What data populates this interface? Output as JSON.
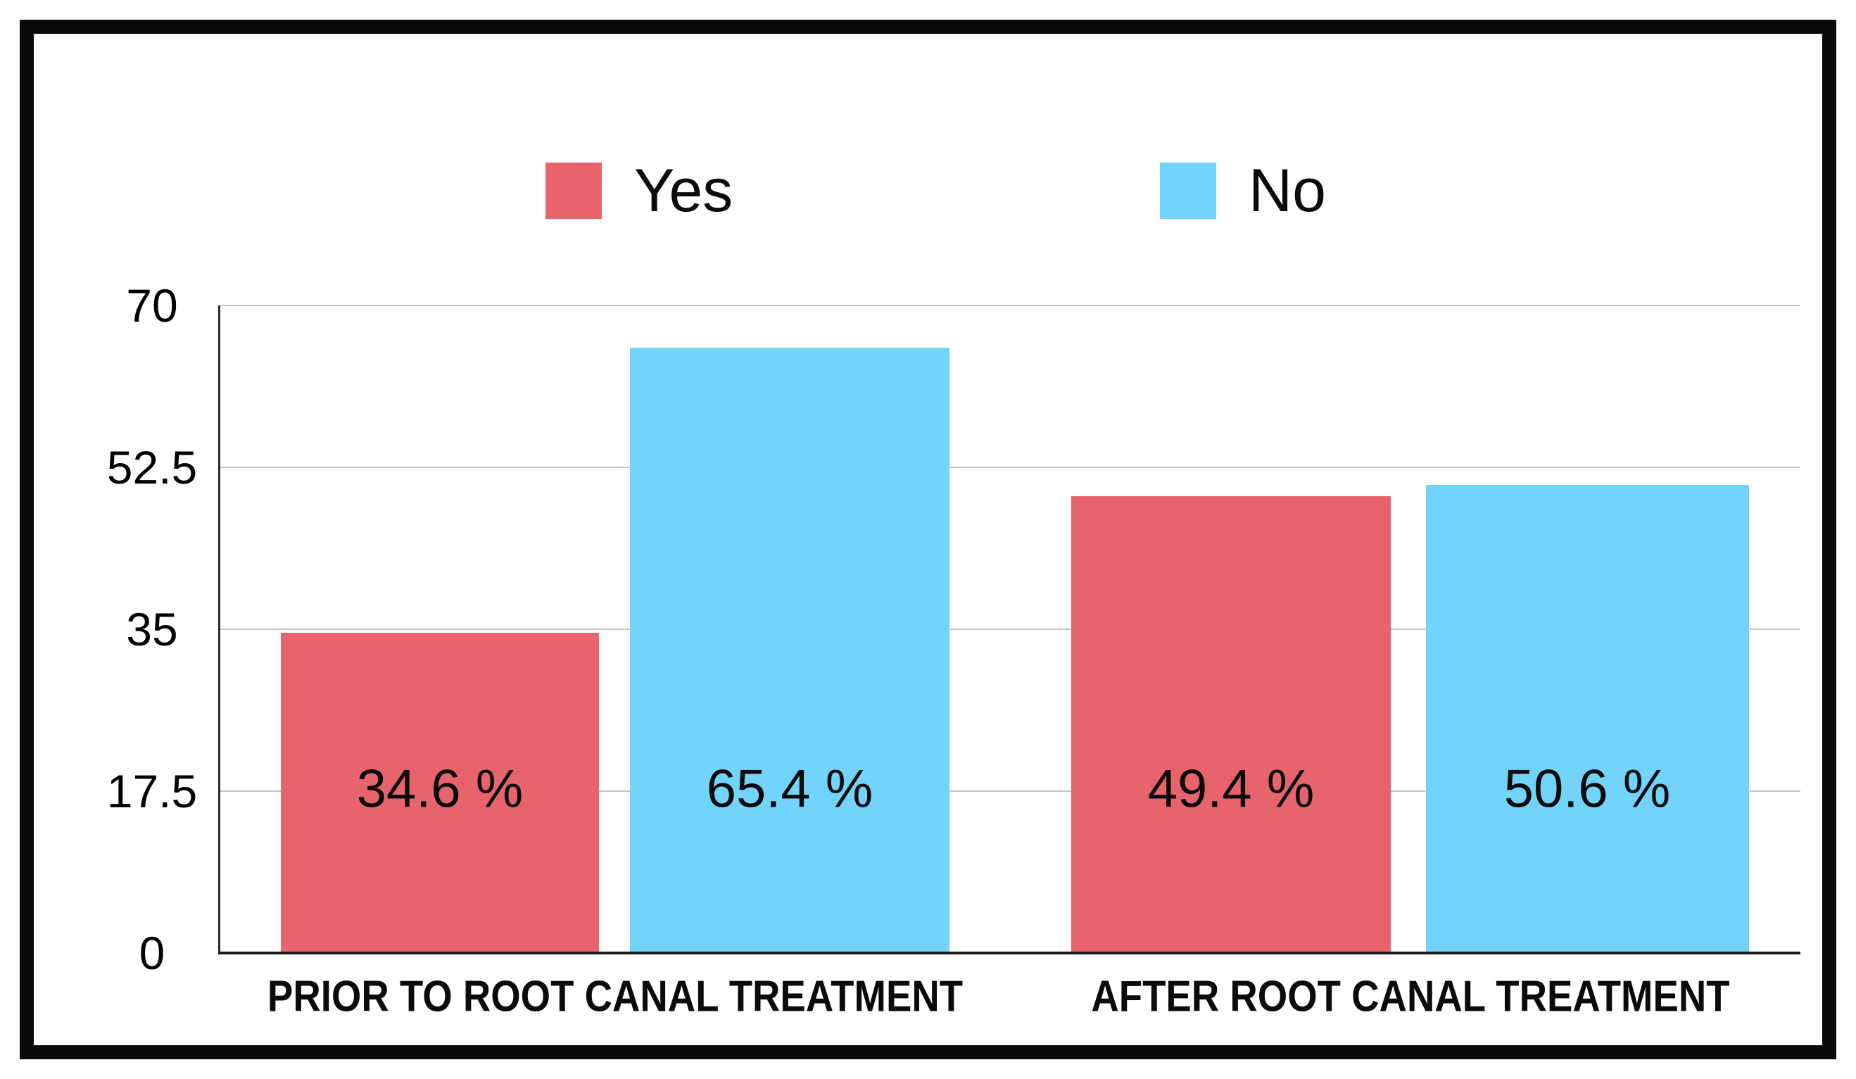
{
  "chart_data": {
    "type": "bar",
    "title": "",
    "categories": [
      "PRIOR TO ROOT CANAL TREATMENT",
      "AFTER ROOT CANAL TREATMENT"
    ],
    "series": [
      {
        "name": "Yes",
        "color": "#e7646c",
        "values": [
          34.6,
          49.4
        ],
        "labels": [
          "34.6 %",
          "49.4 %"
        ]
      },
      {
        "name": "No",
        "color": "#72d3fb",
        "values": [
          65.4,
          50.6
        ],
        "labels": [
          "65.4 %",
          "50.6 %"
        ]
      }
    ],
    "unit": "%",
    "xlabel": "",
    "ylabel": "",
    "ylim": [
      0,
      70
    ],
    "yticks": [
      0,
      17.5,
      35,
      52.5,
      70
    ],
    "ytick_labels": [
      "0",
      "17.5",
      "35",
      "52.5",
      "70"
    ],
    "grid": true,
    "legend_position": "top"
  },
  "legend": {
    "items": [
      {
        "label": "Yes",
        "color": "#e7646c"
      },
      {
        "label": "No",
        "color": "#72d3fb"
      }
    ]
  }
}
